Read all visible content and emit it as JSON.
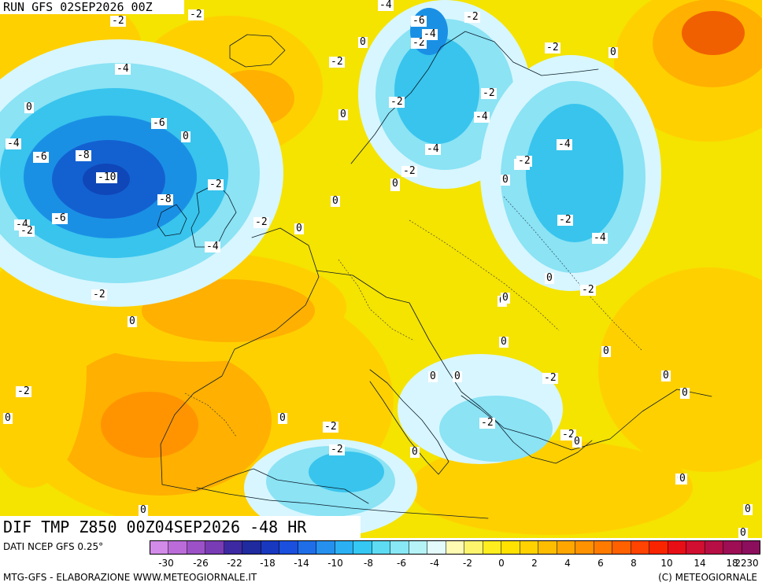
{
  "map": {
    "run_title": "RUN GFS 02SEP2026 00Z",
    "product_title": "DIF TMP Z850 00Z04SEP2026 -48 HR",
    "colors": {
      "cold_ring_1": "#d8f6ff",
      "cold_ring_2": "#8be3f4",
      "cold_ring_3": "#38c4ed",
      "cold_ring_4": "#1a90e5",
      "cold_ring_5": "#1361d1",
      "cold_core": "#0f46b8",
      "warm_ring_1": "#ffe800",
      "warm_ring_2": "#ffd000",
      "warm_ring_3": "#ffb000",
      "warm_ring_4": "#ff9400",
      "warm_core": "#f06000"
    },
    "contour_labels": [
      "-2",
      "-2",
      "-4",
      "-6",
      "-2",
      "-2",
      "-4",
      "-2",
      "0",
      "-2",
      "0",
      "-4",
      "-6",
      "-8",
      "-10",
      "-8",
      "-6",
      "-4",
      "-6",
      "-4",
      "-2",
      "-4",
      "-2",
      "0",
      "-2",
      "-4",
      "0",
      "-2",
      "-4",
      "-2",
      "0",
      "0",
      "0",
      "-2",
      "0",
      "0",
      "0",
      "0",
      "0",
      "-2",
      "0",
      "-2",
      "-2",
      "-4",
      "0",
      "0",
      "0",
      "-2",
      "0",
      "0",
      "-2",
      "-2",
      "0",
      "0",
      "0",
      "0",
      "-2",
      "0",
      "-2",
      "-2",
      "0",
      "-2",
      "0",
      "0",
      "0",
      "-4",
      "-2",
      "0",
      "0",
      "0"
    ]
  },
  "legend": {
    "source": "DATI NCEP GFS 0.25°",
    "credit_left": "MTG-GFS - ELABORAZIONE WWW.METEOGIORNALE.IT",
    "credit_right": "(C) METEOGIORNALE",
    "tick_labels": [
      "-30",
      "-26",
      "-22",
      "-18",
      "-14",
      "-10",
      "-8",
      "-6",
      "-4",
      "-2",
      "0",
      "2",
      "4",
      "6",
      "8",
      "10",
      "14",
      "18",
      "22",
      "30"
    ],
    "colors": [
      "#d28be8",
      "#bb6cd8",
      "#9c52c6",
      "#7a3cb5",
      "#3d2aa2",
      "#1f2b9e",
      "#1838c0",
      "#1b4fdd",
      "#1f6ee7",
      "#2690ee",
      "#2bb1f3",
      "#34c8f3",
      "#5edcf3",
      "#89e8f5",
      "#b5f3f7",
      "#e3fcfb",
      "#fffbb3",
      "#fff56d",
      "#ffee1f",
      "#ffe200",
      "#ffd200",
      "#ffbd00",
      "#ffa700",
      "#ff9200",
      "#ff7b00",
      "#ff6100",
      "#ff4300",
      "#f92400",
      "#e80e16",
      "#d00f31",
      "#b70f45",
      "#9d0e55",
      "#8c0f5d"
    ]
  }
}
